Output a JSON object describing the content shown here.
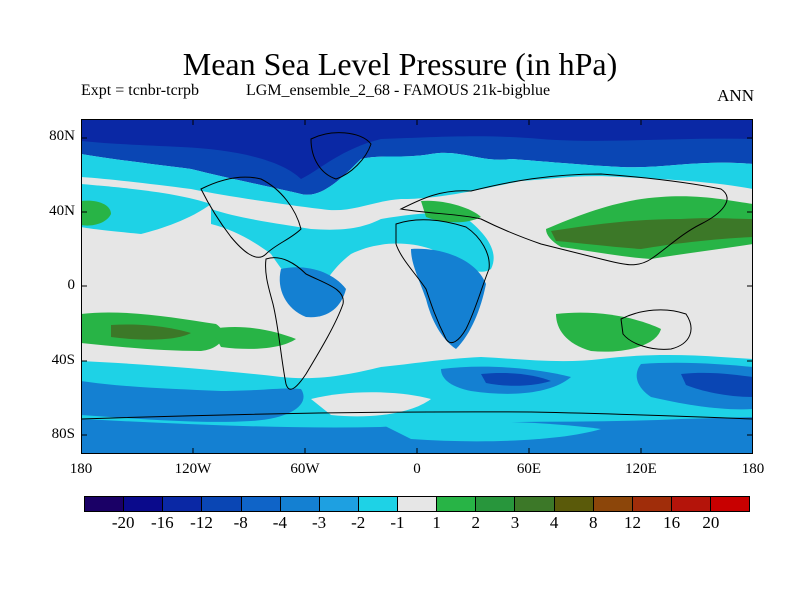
{
  "title": "Mean Sea Level Pressure (in hPa)",
  "subtitle_left": "Expt = tcnbr-tcrpb",
  "subtitle_mid": "LGM_ensemble_2_68 - FAMOUS 21k-bigblue",
  "subtitle_right": "ANN",
  "lat_ticks": [
    "80N",
    "40N",
    "0",
    "40S",
    "80S"
  ],
  "lon_ticks": [
    "180",
    "120W",
    "60W",
    "0",
    "60E",
    "120E",
    "180"
  ],
  "colorbar": {
    "colors": [
      "#1a0066",
      "#0a0a8c",
      "#0a28a5",
      "#0a46b4",
      "#0f64c8",
      "#1480d2",
      "#1ea0e1",
      "#1ed2e6",
      "#e6e6e6",
      "#28b446",
      "#28963c",
      "#3c7828",
      "#5a5a0a",
      "#8c460a",
      "#a02d0a",
      "#b4140a",
      "#c80000"
    ],
    "labels": [
      "-20",
      "-16",
      "-12",
      "-8",
      "-4",
      "-3",
      "-2",
      "-1",
      "1",
      "2",
      "3",
      "4",
      "8",
      "12",
      "16",
      "20"
    ]
  },
  "colors": {
    "ocean_cyan": "#1ed2e6",
    "grey": "#e6e6e6",
    "blue_mid": "#1480d2",
    "blue_dark": "#0a46b4",
    "green": "#28b446",
    "green_dark": "#3c7828"
  }
}
